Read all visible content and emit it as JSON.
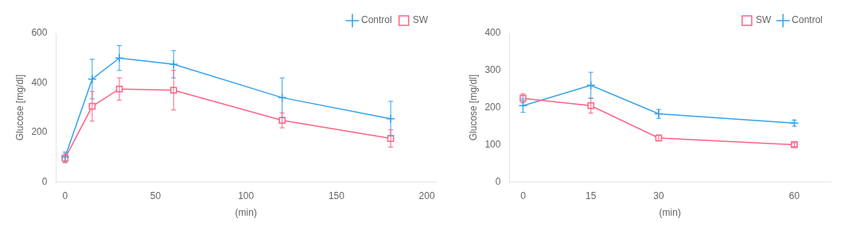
{
  "chart_data": [
    {
      "type": "line",
      "xlabel": "(min)",
      "ylabel": "Glucose [mg/dl]",
      "x": [
        0,
        15,
        30,
        60,
        120,
        180
      ],
      "series": [
        {
          "name": "Control",
          "values": [
            100,
            415,
            500,
            475,
            340,
            255
          ],
          "errors": [
            20,
            80,
            50,
            55,
            80,
            70
          ],
          "marker": "plus"
        },
        {
          "name": "SW",
          "values": [
            95,
            305,
            375,
            370,
            248,
            175
          ],
          "errors": [
            18,
            60,
            45,
            80,
            30,
            35
          ],
          "marker": "square"
        }
      ],
      "xlim": [
        -5,
        205
      ],
      "xticks": [
        0,
        50,
        100,
        150,
        200
      ],
      "ylim": [
        0,
        600
      ],
      "yticks": [
        0,
        200,
        400,
        600
      ],
      "grid": false,
      "legend": "upper right"
    },
    {
      "type": "line",
      "xlabel": "(min)",
      "ylabel": "Glucose [mg/dl]",
      "x": [
        0,
        15,
        30,
        60
      ],
      "series": [
        {
          "name": "SW",
          "values": [
            225,
            205,
            118,
            100
          ],
          "errors": [
            12,
            20,
            8,
            5
          ],
          "marker": "square"
        },
        {
          "name": "Control",
          "values": [
            205,
            260,
            183,
            158
          ],
          "errors": [
            18,
            35,
            12,
            8
          ],
          "marker": "plus"
        }
      ],
      "xlim": [
        -3,
        68
      ],
      "xticks": [
        0,
        15,
        30,
        60
      ],
      "ylim": [
        0,
        400
      ],
      "yticks": [
        0,
        100,
        200,
        300,
        400
      ],
      "grid": false,
      "legend": "upper right"
    }
  ]
}
